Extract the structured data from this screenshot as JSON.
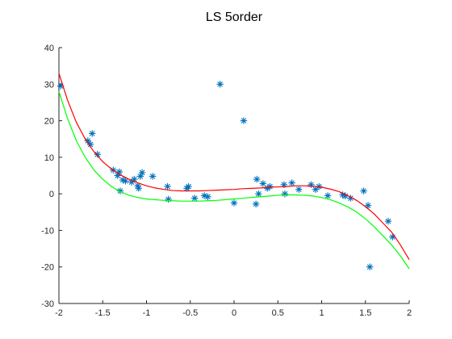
{
  "chart_data": {
    "type": "scatter",
    "title": "LS 5order",
    "xlabel": "",
    "ylabel": "",
    "xlim": [
      -2,
      2
    ],
    "ylim": [
      -30,
      40
    ],
    "xticks": [
      -2,
      -1.5,
      -1,
      -0.5,
      0,
      0.5,
      1,
      1.5,
      2
    ],
    "xtick_labels": [
      "-2",
      "-1.5",
      "-1",
      "-0.5",
      "0",
      "0.5",
      "1",
      "1.5",
      "2"
    ],
    "yticks": [
      -30,
      -20,
      -10,
      0,
      10,
      20,
      30,
      40
    ],
    "ytick_labels": [
      "-30",
      "-20",
      "-10",
      "0",
      "10",
      "20",
      "30",
      "40"
    ],
    "grid": false,
    "series": [
      {
        "type": "scatter",
        "marker": "asterisk",
        "color": "#0072bd",
        "points": [
          [
            -1.98,
            29.5
          ],
          [
            -1.67,
            14.5
          ],
          [
            -1.64,
            13.5
          ],
          [
            -1.62,
            16.5
          ],
          [
            -1.56,
            10.8
          ],
          [
            -1.38,
            6.5
          ],
          [
            -1.33,
            5
          ],
          [
            -1.31,
            6
          ],
          [
            -1.3,
            0.8
          ],
          [
            -1.27,
            3.8
          ],
          [
            -1.24,
            3.5
          ],
          [
            -1.17,
            3.2
          ],
          [
            -1.14,
            4
          ],
          [
            -1.1,
            2.2
          ],
          [
            -1.09,
            1.5
          ],
          [
            -1.07,
            4.8
          ],
          [
            -1.05,
            5.8
          ],
          [
            -0.93,
            4.8
          ],
          [
            -0.76,
            2
          ],
          [
            -0.75,
            -1.5
          ],
          [
            -0.54,
            1.5
          ],
          [
            -0.52,
            2
          ],
          [
            -0.45,
            -1.2
          ],
          [
            -0.34,
            -0.5
          ],
          [
            -0.3,
            -0.8
          ],
          [
            -0.16,
            30
          ],
          [
            0.0,
            -2.5
          ],
          [
            0.11,
            20
          ],
          [
            0.25,
            -2.8
          ],
          [
            0.26,
            4
          ],
          [
            0.28,
            0
          ],
          [
            0.33,
            2.8
          ],
          [
            0.38,
            1.5
          ],
          [
            0.41,
            2
          ],
          [
            0.57,
            2.5
          ],
          [
            0.58,
            0
          ],
          [
            0.66,
            3
          ],
          [
            0.74,
            1.2
          ],
          [
            0.88,
            2.5
          ],
          [
            0.93,
            1.2
          ],
          [
            0.97,
            2
          ],
          [
            1.07,
            -0.5
          ],
          [
            1.24,
            -0.3
          ],
          [
            1.27,
            -0.6
          ],
          [
            1.33,
            -1.2
          ],
          [
            1.48,
            0.8
          ],
          [
            1.53,
            -3.2
          ],
          [
            1.55,
            -20
          ],
          [
            1.76,
            -7.5
          ],
          [
            1.81,
            -11.8
          ]
        ]
      },
      {
        "type": "line",
        "color": "#ff0000",
        "x": [
          -2,
          -1.9,
          -1.8,
          -1.7,
          -1.6,
          -1.5,
          -1.4,
          -1.3,
          -1.2,
          -1.1,
          -1.0,
          -0.9,
          -0.8,
          -0.7,
          -0.6,
          -0.5,
          -0.4,
          -0.3,
          -0.2,
          -0.1,
          0,
          0.1,
          0.2,
          0.3,
          0.4,
          0.5,
          0.6,
          0.7,
          0.8,
          0.9,
          1.0,
          1.1,
          1.2,
          1.3,
          1.4,
          1.5,
          1.6,
          1.7,
          1.8,
          1.9,
          2.0
        ],
        "y": [
          33,
          25.5,
          19.5,
          15,
          11.5,
          8.8,
          6.8,
          5.2,
          4,
          3,
          2.2,
          1.6,
          1.2,
          0.9,
          0.8,
          0.8,
          0.8,
          0.9,
          1,
          1.1,
          1.2,
          1.4,
          1.5,
          1.6,
          1.8,
          1.9,
          2,
          2.2,
          2.2,
          2.1,
          1.8,
          1.3,
          0.6,
          -0.5,
          -1.8,
          -3.5,
          -5.5,
          -8,
          -10.5,
          -14,
          -18
        ]
      },
      {
        "type": "line",
        "color": "#00ff00",
        "x": [
          -2,
          -1.9,
          -1.8,
          -1.7,
          -1.6,
          -1.5,
          -1.4,
          -1.3,
          -1.2,
          -1.1,
          -1.0,
          -0.9,
          -0.8,
          -0.7,
          -0.6,
          -0.5,
          -0.4,
          -0.3,
          -0.2,
          -0.1,
          0,
          0.1,
          0.2,
          0.3,
          0.4,
          0.5,
          0.6,
          0.7,
          0.8,
          0.9,
          1.0,
          1.1,
          1.2,
          1.3,
          1.4,
          1.5,
          1.6,
          1.7,
          1.8,
          1.9,
          2.0
        ],
        "y": [
          28,
          20.5,
          14.5,
          10,
          6.5,
          4,
          2,
          0.6,
          -0.4,
          -1,
          -1.4,
          -1.6,
          -1.8,
          -1.9,
          -2,
          -2,
          -2,
          -1.9,
          -1.8,
          -1.6,
          -1.4,
          -1.2,
          -1,
          -0.8,
          -0.6,
          -0.4,
          -0.3,
          -0.3,
          -0.4,
          -0.6,
          -1,
          -1.6,
          -2.5,
          -3.6,
          -5,
          -6.8,
          -9,
          -11.5,
          -14,
          -17,
          -20.5
        ]
      }
    ]
  }
}
